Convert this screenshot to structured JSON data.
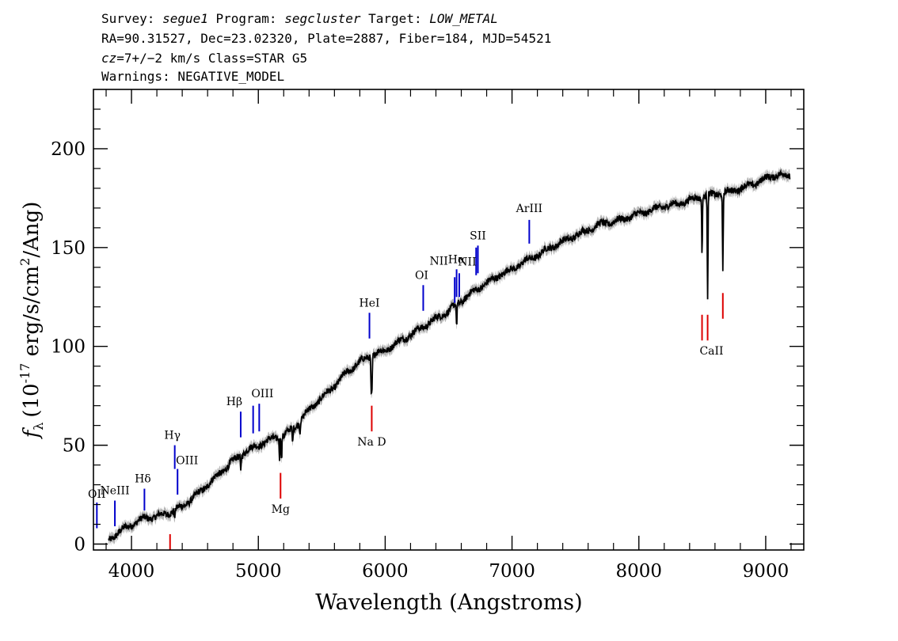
{
  "header": {
    "survey_label": "Survey: ",
    "survey": "segue1",
    "program_label": " Program: ",
    "program": "segcluster",
    "target_label": " Target: ",
    "target": "LOW_METAL",
    "line2": "RA=90.31527, Dec=23.02320, Plate=2887, Fiber=184, MJD=54521",
    "cz_label": "cz",
    "cz_value": "=7+/−2 km/s Class=STAR G5",
    "warnings": "Warnings: NEGATIVE_MODEL"
  },
  "chart_data": {
    "type": "line",
    "xlabel": "Wavelength (Angstroms)",
    "ylabel_symbol": "f",
    "ylabel_sub": "λ",
    "ylabel_text_a": "(10",
    "ylabel_exp": "-17",
    "ylabel_text_b": " erg/s/cm",
    "ylabel_exp2": "2",
    "ylabel_text_c": "/Ang)",
    "xlim": [
      3700,
      9300
    ],
    "ylim": [
      -3,
      230
    ],
    "x_ticks": [
      4000,
      5000,
      6000,
      7000,
      8000,
      9000
    ],
    "y_ticks": [
      0,
      50,
      100,
      150,
      200
    ],
    "x_tick_labels": [
      "4000",
      "5000",
      "6000",
      "7000",
      "8000",
      "9000"
    ],
    "y_tick_labels": [
      "0",
      "50",
      "100",
      "150",
      "200"
    ],
    "spectrum_color": "#000000",
    "error_color": "#b0b0b0",
    "emission_color": "#0000cc",
    "absorption_color": "#dd0000",
    "spectrum": {
      "x": [
        3820,
        3900,
        4000,
        4100,
        4200,
        4300,
        4400,
        4500,
        4600,
        4700,
        4800,
        4900,
        5000,
        5100,
        5200,
        5300,
        5400,
        5500,
        5600,
        5700,
        5800,
        5900,
        6000,
        6100,
        6200,
        6300,
        6400,
        6500,
        6600,
        6700,
        6800,
        6900,
        7000,
        7100,
        7200,
        7300,
        7400,
        7500,
        7600,
        7700,
        7800,
        7900,
        8000,
        8100,
        8200,
        8300,
        8400,
        8500,
        8600,
        8700,
        8800,
        8900,
        9000,
        9100,
        9190
      ],
      "y": [
        2,
        6,
        10,
        13,
        14,
        16,
        19,
        24,
        30,
        36,
        42,
        47,
        50,
        53,
        55,
        60,
        68,
        74,
        80,
        87,
        92,
        96,
        98,
        102,
        106,
        110,
        114,
        118,
        123,
        128,
        132,
        136,
        139,
        143,
        146,
        150,
        153,
        156,
        159,
        162,
        163,
        165,
        167,
        169,
        171,
        172,
        174,
        176,
        177,
        178,
        180,
        182,
        185,
        187,
        186
      ]
    },
    "absorption_features": [
      {
        "x": 4340,
        "depth": 5
      },
      {
        "x": 4861,
        "depth": 8
      },
      {
        "x": 5167,
        "depth": 10
      },
      {
        "x": 5183,
        "depth": 12
      },
      {
        "x": 5270,
        "depth": 8
      },
      {
        "x": 5328,
        "depth": 6
      },
      {
        "x": 5890,
        "depth": 18
      },
      {
        "x": 5896,
        "depth": 16
      },
      {
        "x": 6563,
        "depth": 12
      },
      {
        "x": 8498,
        "depth": 28
      },
      {
        "x": 8542,
        "depth": 52
      },
      {
        "x": 8662,
        "depth": 40
      }
    ],
    "emission_lines": [
      {
        "label": "OII",
        "x": 3727,
        "ylow": 8,
        "yhigh": 21
      },
      {
        "label": "NeIII",
        "x": 3869,
        "ylow": 9,
        "yhigh": 22
      },
      {
        "label": "Hδ",
        "x": 4102,
        "ylow": 17,
        "yhigh": 28
      },
      {
        "label": "Hγ",
        "x": 4341,
        "ylow": 38,
        "yhigh": 50
      },
      {
        "label": "OIII",
        "x": 4363,
        "ylow": 25,
        "yhigh": 38
      },
      {
        "label": "Hβ",
        "x": 4861,
        "ylow": 54,
        "yhigh": 67
      },
      {
        "label": "OIII",
        "x": 4959,
        "ylow": 56,
        "yhigh": 70
      },
      {
        "label": "OIII",
        "x": 5007,
        "ylow": 57,
        "yhigh": 71
      },
      {
        "label": "HeI",
        "x": 5876,
        "ylow": 104,
        "yhigh": 117
      },
      {
        "label": "OI",
        "x": 6300,
        "ylow": 118,
        "yhigh": 131
      },
      {
        "label": "NII",
        "x": 6548,
        "ylow": 122,
        "yhigh": 135
      },
      {
        "label": "Hα",
        "x": 6563,
        "ylow": 125,
        "yhigh": 139
      },
      {
        "label": "NII",
        "x": 6584,
        "ylow": 125,
        "yhigh": 137
      },
      {
        "label": "SII",
        "x": 6717,
        "ylow": 136,
        "yhigh": 150
      },
      {
        "label": "SII",
        "x": 6731,
        "ylow": 137,
        "yhigh": 151
      },
      {
        "label": "ArIII",
        "x": 7136,
        "ylow": 152,
        "yhigh": 164
      }
    ],
    "absorption_lines": [
      {
        "label": "",
        "x": 4304,
        "ylow": -3,
        "yhigh": 5
      },
      {
        "label": "Mg",
        "x": 5175,
        "ylow": 23,
        "yhigh": 36
      },
      {
        "label": "Na D",
        "x": 5894,
        "ylow": 57,
        "yhigh": 70
      },
      {
        "label": "CaII",
        "x": 8498,
        "ylow": 103,
        "yhigh": 116
      },
      {
        "label": "",
        "x": 8542,
        "ylow": 103,
        "yhigh": 116
      },
      {
        "label": "",
        "x": 8662,
        "ylow": 114,
        "yhigh": 127
      }
    ]
  }
}
